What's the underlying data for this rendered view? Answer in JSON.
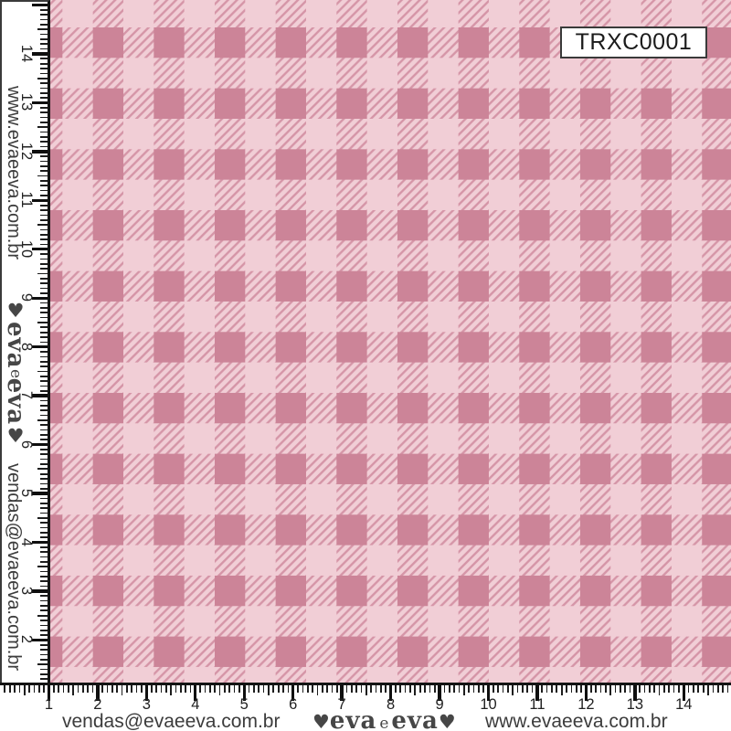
{
  "swatch": {
    "code": "TRXC0001",
    "pattern_name": "pink-gingham-check"
  },
  "branding": {
    "website": "www.evaeeva.com.br",
    "email": "vendas@evaeeva.com.br",
    "logo": {
      "heart_left": "♥",
      "word_first": "eva",
      "word_middle": "e",
      "word_last": "eva",
      "heart_right": "♥"
    }
  },
  "rulers": {
    "unit": "cm",
    "left": {
      "numbers": [
        "14",
        "13",
        "12",
        "11",
        "10",
        "9",
        "8",
        "7",
        "6",
        "5",
        "4",
        "3",
        "2"
      ]
    },
    "bottom": {
      "numbers": [
        "1",
        "2",
        "3",
        "4",
        "5",
        "6",
        "7",
        "8",
        "9",
        "10",
        "11",
        "12",
        "13",
        "14"
      ]
    }
  },
  "fabric": {
    "colors": {
      "light": "#f1ced6",
      "dark": "#cc8498",
      "stripe": "#d595a7"
    }
  }
}
